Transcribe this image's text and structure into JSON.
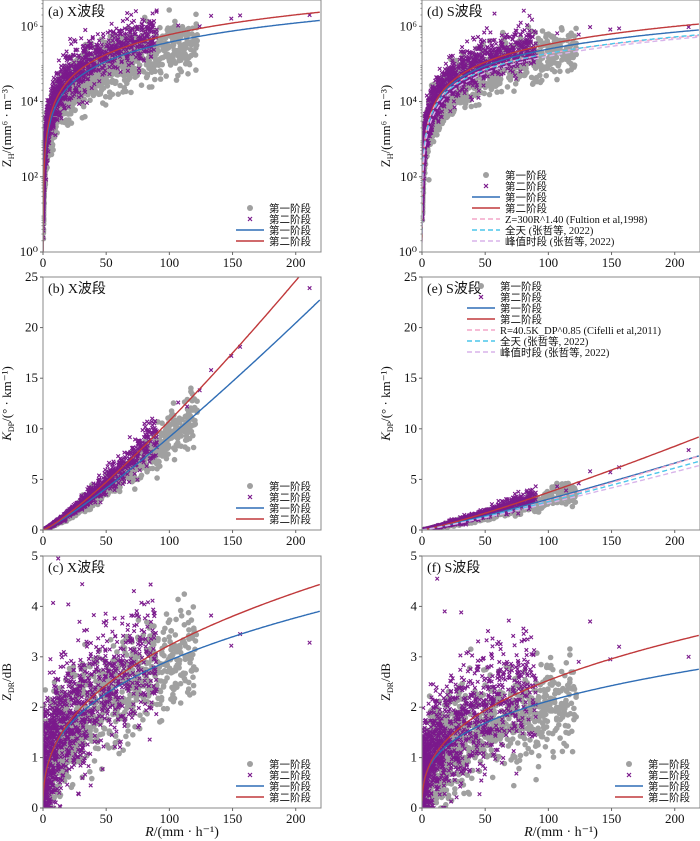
{
  "figure": {
    "xlabel": "R/(mm · h⁻¹)",
    "legend_scatter_stage1": "第一阶段",
    "legend_scatter_stage2": "第二阶段",
    "legend_line_stage1": "第一阶段",
    "legend_line_stage2": "第二阶段"
  },
  "colors": {
    "stage1_scatter": "#a0a0a0",
    "stage2_scatter": "#7b1a8c",
    "stage1_line": "#2f6db5",
    "stage2_line": "#c0393b",
    "ref_pink": "#f4a6c8",
    "ref_cyan": "#4cc6ea",
    "ref_lilac": "#d8b4ea"
  },
  "chart_data": [
    {
      "id": "a",
      "type": "scatter",
      "title": "(a) X波段",
      "xlabel": "",
      "ylabel": "Z_H/(mm⁶ · m⁻³)",
      "ylabel_main": "Z",
      "ylabel_sub": "H",
      "ylabel_rest": "/(mm⁶ · m⁻³)",
      "xlim": [
        0,
        220
      ],
      "ylim": [
        1,
        5000000
      ],
      "yscale": "log",
      "xticks": [
        0,
        50,
        100,
        150,
        200
      ],
      "yticks": [
        1,
        100,
        10000,
        1000000
      ],
      "ytick_labels": [
        "10⁰",
        "10²",
        "10⁴",
        "10⁶"
      ],
      "legend": "bottom-right",
      "fits": [
        {
          "name": "第一阶段",
          "a": 150,
          "b": 1.7,
          "style": "solid",
          "color": "stage1_line"
        },
        {
          "name": "第二阶段",
          "a": 190,
          "b": 1.75,
          "style": "solid",
          "color": "stage2_line"
        }
      ],
      "outliers_stage2": [
        [
          133,
          1900000
        ],
        [
          149,
          1600000
        ],
        [
          156,
          1950000
        ],
        [
          211,
          2000000
        ],
        [
          124,
          1000000
        ],
        [
          107,
          1050000
        ]
      ],
      "scatter_spread": {
        "stage1_log_sigma": 0.35,
        "stage2_log_sigma": 0.32
      }
    },
    {
      "id": "b",
      "type": "scatter",
      "title": "(b) X波段",
      "ylabel": "K_DP/(° · km⁻¹)",
      "ylabel_main": "K",
      "ylabel_sub": "DP",
      "ylabel_rest": "/(° · km⁻¹)",
      "xlim": [
        0,
        220
      ],
      "ylim": [
        0,
        25
      ],
      "yscale": "linear",
      "xticks": [
        0,
        50,
        100,
        150,
        200
      ],
      "yticks": [
        0,
        5,
        10,
        15,
        20,
        25
      ],
      "ytick_labels": [
        "0",
        "5",
        "10",
        "15",
        "20",
        "25"
      ],
      "legend": "bottom-right",
      "fits": [
        {
          "name": "第一阶段",
          "a": 0.045,
          "b": 1.155,
          "style": "solid",
          "color": "stage1_line"
        },
        {
          "name": "第二阶段",
          "a": 0.045,
          "b": 1.19,
          "style": "solid",
          "color": "stage2_line"
        }
      ],
      "outliers_stage2": [
        [
          211,
          23.9
        ],
        [
          156,
          18.1
        ],
        [
          149,
          17.2
        ],
        [
          133,
          15.8
        ],
        [
          124,
          13.8
        ],
        [
          107,
          12.6
        ],
        [
          114,
          12.2
        ],
        [
          86,
          10.7
        ]
      ],
      "scatter_spread": {
        "stage1_rel_sigma": 0.12,
        "stage2_rel_sigma": 0.12
      }
    },
    {
      "id": "c",
      "type": "scatter",
      "title": "(c) X波段",
      "ylabel": "Z_DR/dB",
      "ylabel_main": "Z",
      "ylabel_sub": "DR",
      "ylabel_rest": "/dB",
      "xlim": [
        0,
        220
      ],
      "ylim": [
        0,
        5
      ],
      "yscale": "linear",
      "xticks": [
        0,
        50,
        100,
        150,
        200
      ],
      "yticks": [
        0,
        1,
        2,
        3,
        4,
        5
      ],
      "ytick_labels": [
        "0",
        "1",
        "2",
        "3",
        "4",
        "5"
      ],
      "legend": "bottom-right",
      "fits": [
        {
          "name": "第一阶段",
          "a": 0.54,
          "b": 0.367,
          "style": "solid",
          "color": "stage1_line"
        },
        {
          "name": "第二阶段",
          "a": 0.5,
          "b": 0.405,
          "style": "solid",
          "color": "stage2_line"
        }
      ],
      "outliers_stage2": [
        [
          211,
          3.28
        ],
        [
          133,
          3.82
        ],
        [
          156,
          3.45
        ],
        [
          149,
          3.22
        ],
        [
          12,
          4.95
        ],
        [
          31,
          4.44
        ],
        [
          8,
          4.07
        ],
        [
          20,
          4.04
        ]
      ],
      "scatter_spread": {
        "stage1_abs_sigma": 0.55,
        "stage2_abs_sigma": 0.6
      }
    },
    {
      "id": "d",
      "type": "scatter",
      "title": "(d) S波段",
      "ylabel": "Z_H/(mm⁶ · m⁻³)",
      "ylabel_main": "Z",
      "ylabel_sub": "H",
      "ylabel_rest": "/(mm⁶ · m⁻³)",
      "xlim": [
        0,
        220
      ],
      "ylim": [
        1,
        5000000
      ],
      "yscale": "log",
      "xticks": [
        0,
        50,
        100,
        150,
        200
      ],
      "yticks": [
        1,
        100,
        10000,
        1000000
      ],
      "ytick_labels": [
        "10⁰",
        "10²",
        "10⁴",
        "10⁶"
      ],
      "legend": "bottom-right",
      "fits": [
        {
          "name": "第一阶段",
          "a": 260,
          "b": 1.49,
          "style": "solid",
          "color": "stage1_line"
        },
        {
          "name": "第二阶段",
          "a": 230,
          "b": 1.58,
          "style": "solid",
          "color": "stage2_line"
        },
        {
          "name": "Z=300R^1.40 (Fultion et al,1998)",
          "a": 300,
          "b": 1.4,
          "style": "dashed",
          "color": "ref_pink"
        },
        {
          "name": "全天 (张哲等, 2022)",
          "a": 240,
          "b": 1.45,
          "style": "dashed",
          "color": "ref_cyan"
        },
        {
          "name": "峰值时段 (张哲等, 2022)",
          "a": 160,
          "b": 1.5,
          "style": "dashed",
          "color": "ref_lilac"
        }
      ],
      "outliers_stage2": [
        [
          133,
          950000
        ],
        [
          149,
          820000
        ],
        [
          156,
          880000
        ],
        [
          211,
          950000
        ],
        [
          124,
          600000
        ],
        [
          107,
          650000
        ]
      ],
      "scatter_spread": {
        "stage1_log_sigma": 0.3,
        "stage2_log_sigma": 0.3
      }
    },
    {
      "id": "e",
      "type": "scatter",
      "title": "(e) S波段",
      "ylabel": "K_DP/(° · km⁻¹)",
      "ylabel_main": "K",
      "ylabel_sub": "DP",
      "ylabel_rest": "/(° · km⁻¹)",
      "xlim": [
        0,
        220
      ],
      "ylim": [
        0,
        25
      ],
      "yscale": "linear",
      "xticks": [
        0,
        50,
        100,
        150,
        200
      ],
      "yticks": [
        0,
        5,
        10,
        15,
        20,
        25
      ],
      "ytick_labels": [
        "0",
        "5",
        "10",
        "15",
        "20",
        "25"
      ],
      "legend": "top-right",
      "fits": [
        {
          "name": "第一阶段",
          "a": 0.0175,
          "b": 1.12,
          "style": "solid",
          "color": "stage1_line"
        },
        {
          "name": "第二阶段",
          "a": 0.018,
          "b": 1.157,
          "style": "solid",
          "color": "stage2_line"
        },
        {
          "name": "R=40.5K_DP^0.85 (Cifelli et al,2011)",
          "a": 0.01288,
          "b": 1.1765,
          "style": "dashed",
          "color": "ref_pink"
        },
        {
          "name": "全天 (张哲等, 2022)",
          "a": 0.0162,
          "b": 1.12,
          "style": "dashed",
          "color": "ref_cyan"
        },
        {
          "name": "峰值时段 (张哲等, 2022)",
          "a": 0.0152,
          "b": 1.12,
          "style": "dashed",
          "color": "ref_lilac"
        }
      ],
      "outliers_stage2": [
        [
          211,
          7.9
        ],
        [
          133,
          5.8
        ],
        [
          149,
          5.7
        ],
        [
          156,
          6.2
        ],
        [
          124,
          4.6
        ],
        [
          107,
          4.3
        ],
        [
          114,
          3.9
        ]
      ],
      "scatter_spread": {
        "stage1_rel_sigma": 0.15,
        "stage2_rel_sigma": 0.15
      }
    },
    {
      "id": "f",
      "type": "scatter",
      "title": "(f) S波段",
      "ylabel": "Z_DR/dB",
      "ylabel_main": "Z",
      "ylabel_sub": "DR",
      "ylabel_rest": "/dB",
      "xlim": [
        0,
        220
      ],
      "ylim": [
        0,
        5
      ],
      "yscale": "linear",
      "xticks": [
        0,
        50,
        100,
        150,
        200
      ],
      "yticks": [
        0,
        1,
        2,
        3,
        4,
        5
      ],
      "ytick_labels": [
        "0",
        "1",
        "2",
        "3",
        "4",
        "5"
      ],
      "legend": "bottom-right",
      "fits": [
        {
          "name": "第一阶段",
          "a": 0.46,
          "b": 0.332,
          "style": "solid",
          "color": "stage1_line"
        },
        {
          "name": "第二阶段",
          "a": 0.43,
          "b": 0.385,
          "style": "solid",
          "color": "stage2_line"
        }
      ],
      "outliers_stage2": [
        [
          211,
          3.0
        ],
        [
          133,
          3.7
        ],
        [
          156,
          3.2
        ],
        [
          149,
          2.95
        ],
        [
          12,
          4.55
        ],
        [
          18,
          3.9
        ],
        [
          31,
          3.88
        ],
        [
          124,
          2.9
        ]
      ],
      "scatter_spread": {
        "stage1_abs_sigma": 0.5,
        "stage2_abs_sigma": 0.55
      }
    }
  ]
}
